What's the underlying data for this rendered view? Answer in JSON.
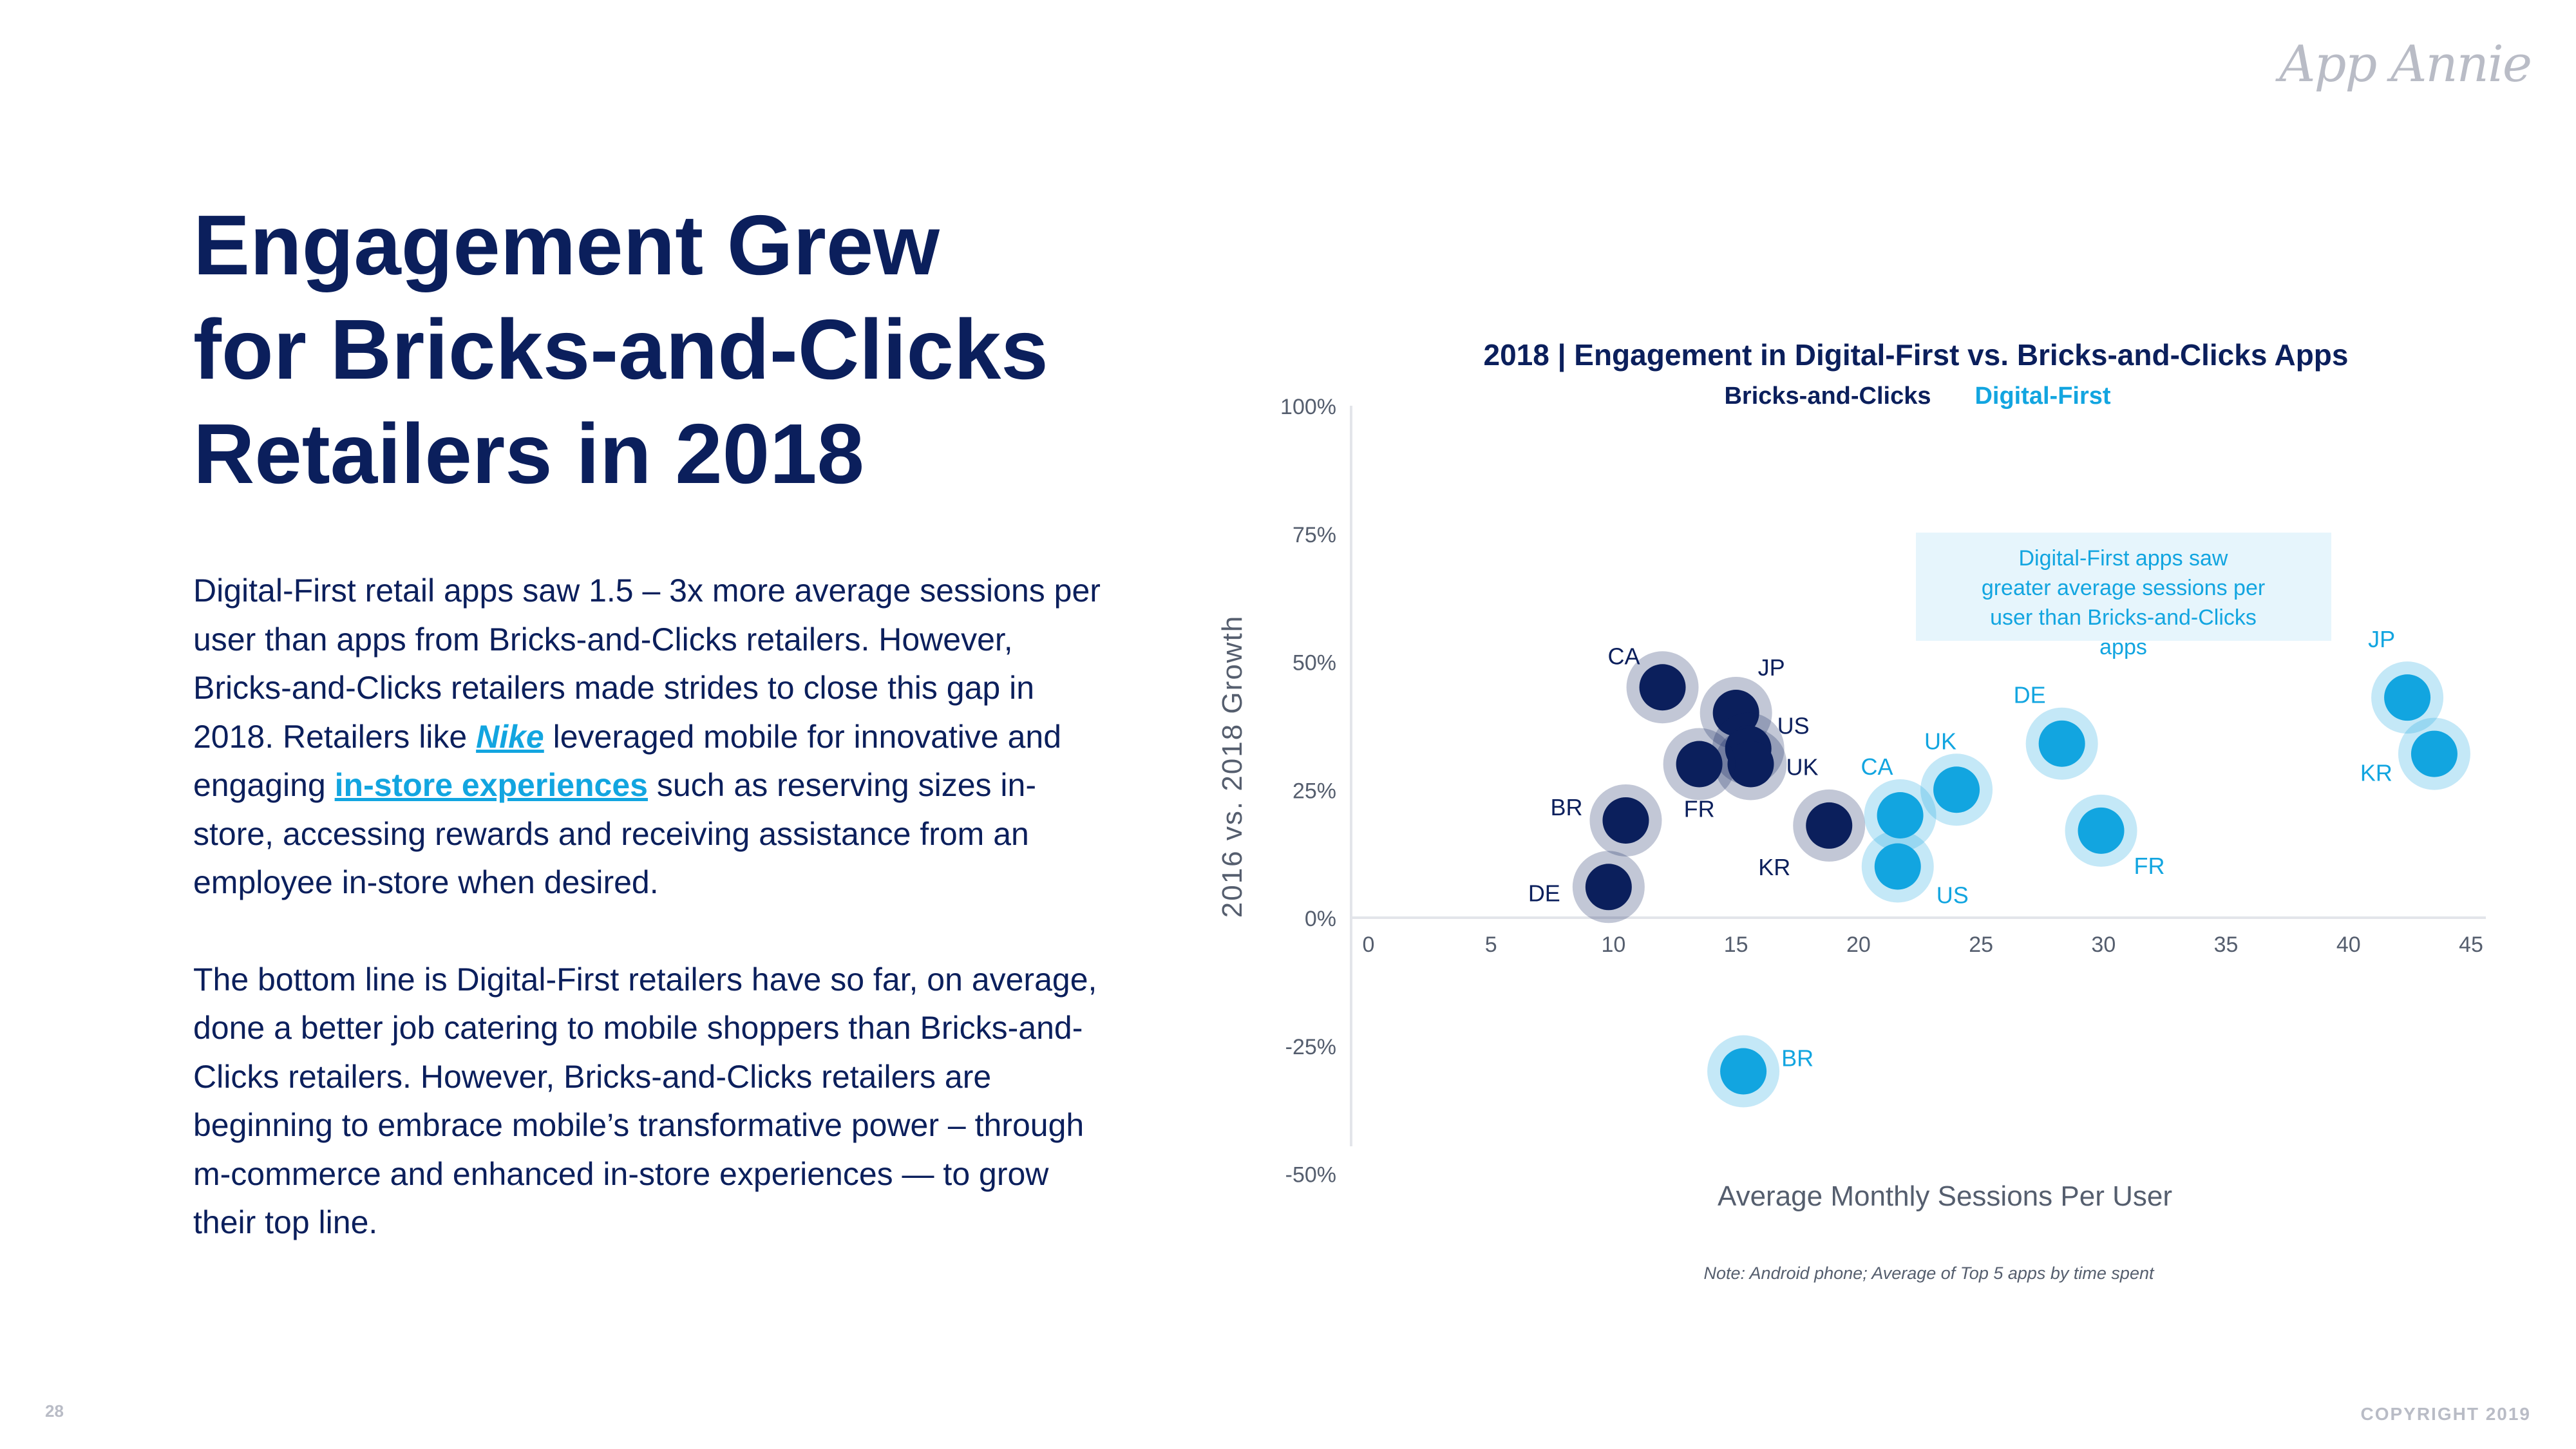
{
  "brand": {
    "logo_text": "App Annie"
  },
  "headline": {
    "line1": "Engagement Grew",
    "line2": "for Bricks-and-Clicks",
    "line3": "Retailers in 2018"
  },
  "paragraph1": {
    "part1": "Digital-First retail apps saw 1.5 – 3x more average sessions per user than apps from Bricks-and-Clicks retailers. However, Bricks-and-Clicks retailers made strides to close this gap in 2018. Retailers like ",
    "link_nike": "Nike",
    "part2": " leveraged mobile for innovative and engaging ",
    "link_instore": "in-store experiences",
    "part3": " such as reserving sizes in-store, accessing rewards and receiving assistance from an employee in-store when desired."
  },
  "paragraph2": "The bottom line is Digital-First retailers have so far, on average, done a better job catering to mobile shoppers than Bricks-and-Clicks retailers. However, Bricks-and-Clicks retailers are beginning to embrace mobile’s transformative power – through m-commerce and enhanced in-store experiences — to grow their top line.",
  "footer": {
    "page_number": "28",
    "copyright": "COPYRIGHT 2019"
  },
  "colors": {
    "navy": "#0b1f5c",
    "accent": "#12a5e0",
    "callout_bg": "#e6f5fc"
  },
  "chart_data": {
    "type": "scatter",
    "title": "2018 | Engagement in Digital-First vs. Bricks-and-Clicks Apps",
    "xlabel": "Average Monthly Sessions Per User",
    "ylabel": "2016 vs. 2018 Growth",
    "xlim": [
      0,
      45
    ],
    "ylim": [
      -50,
      100
    ],
    "x_ticks": [
      "0",
      "5",
      "10",
      "15",
      "20",
      "25",
      "30",
      "35",
      "40",
      "45"
    ],
    "y_ticks": [
      "100%",
      "75%",
      "50%",
      "25%",
      "0%",
      "-25%",
      "-50%"
    ],
    "legend_position": "top",
    "grid": false,
    "annotation": "Digital-First apps saw greater average sessions per user than Bricks-and-Clicks apps",
    "note": "Note: Android phone; Average of Top 5 apps by time spent",
    "series": [
      {
        "name": "Bricks-and-Clicks",
        "color": "#0b1f5c",
        "points": [
          {
            "label": "CA",
            "x": 12.0,
            "y": 45
          },
          {
            "label": "JP",
            "x": 15.0,
            "y": 40
          },
          {
            "label": "US",
            "x": 15.5,
            "y": 33
          },
          {
            "label": "UK",
            "x": 15.6,
            "y": 30
          },
          {
            "label": "FR",
            "x": 13.5,
            "y": 30
          },
          {
            "label": "BR",
            "x": 10.5,
            "y": 19
          },
          {
            "label": "KR",
            "x": 18.8,
            "y": 18
          },
          {
            "label": "DE",
            "x": 9.8,
            "y": 6
          }
        ]
      },
      {
        "name": "Digital-First",
        "color": "#12a5e0",
        "points": [
          {
            "label": "JP",
            "x": 42.4,
            "y": 43
          },
          {
            "label": "KR",
            "x": 43.5,
            "y": 32
          },
          {
            "label": "DE",
            "x": 28.3,
            "y": 34
          },
          {
            "label": "UK",
            "x": 24.0,
            "y": 25
          },
          {
            "label": "CA",
            "x": 21.7,
            "y": 20
          },
          {
            "label": "FR",
            "x": 29.9,
            "y": 17
          },
          {
            "label": "US",
            "x": 21.6,
            "y": 10
          },
          {
            "label": "BR",
            "x": 15.3,
            "y": -30
          }
        ]
      }
    ]
  }
}
